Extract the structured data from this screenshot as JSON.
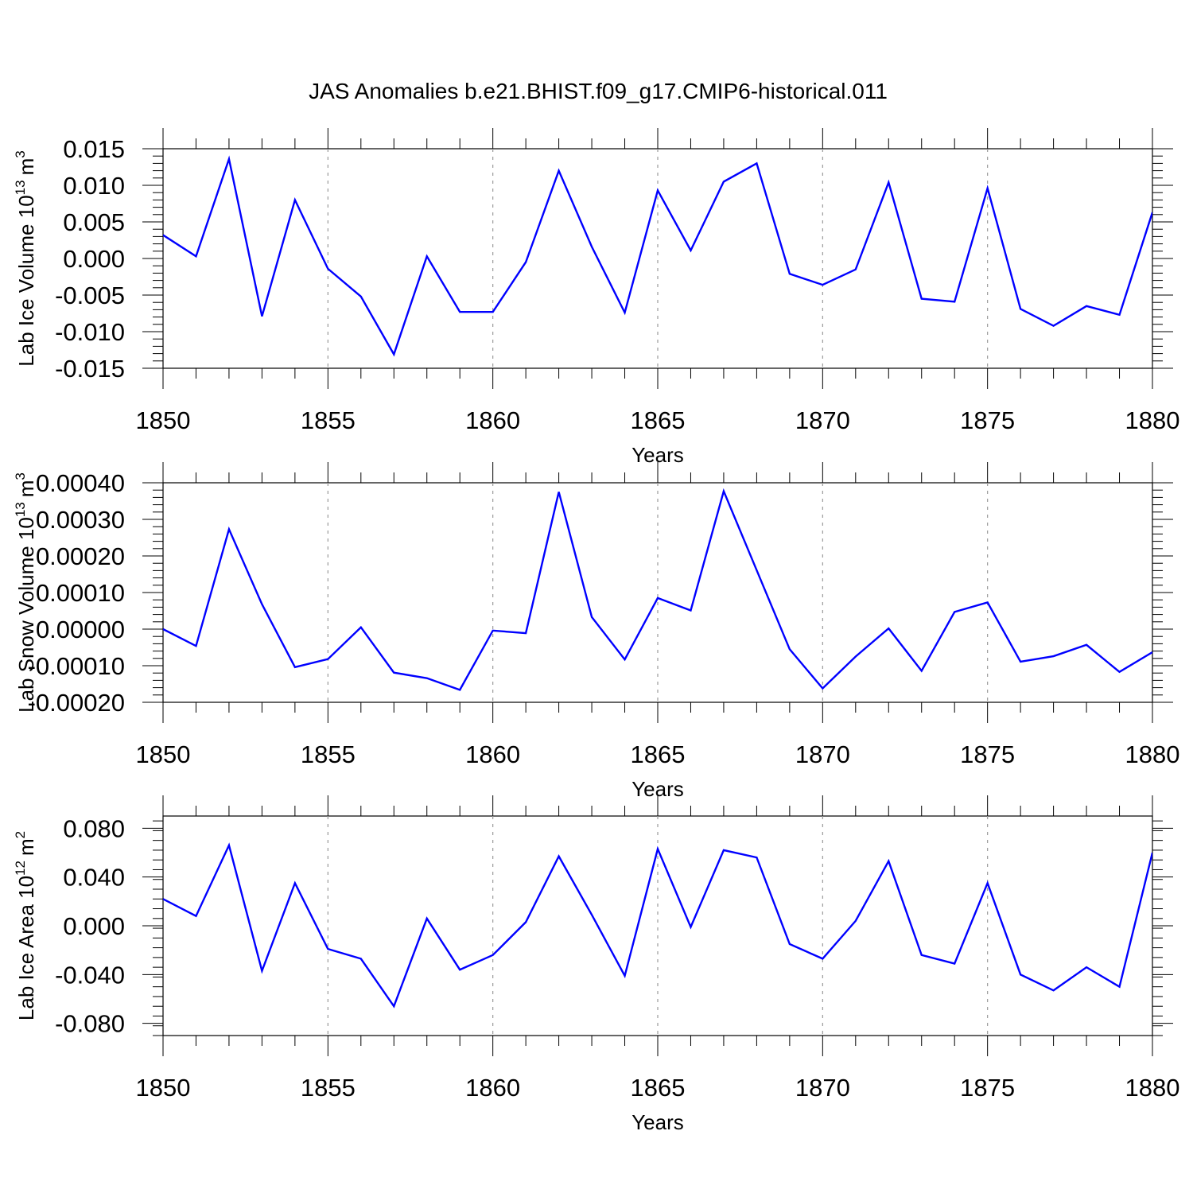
{
  "figure": {
    "title": "JAS Anomalies b.e21.BHIST.f09_g17.CMIP6-historical.011",
    "line_color": "#0000ff",
    "grid_color": "#999999"
  },
  "chart_data": [
    {
      "type": "line",
      "ylabel": "Lab Ice Volume 10",
      "ylabel_sup": "13",
      "ylabel_unit": "m",
      "ylabel_unit_sup": "3",
      "xlabel": "Years",
      "xlim": [
        1850,
        1880
      ],
      "ylim": [
        -0.015,
        0.015
      ],
      "x_ticks": [
        "1850",
        "1855",
        "1860",
        "1865",
        "1870",
        "1875",
        "1880"
      ],
      "y_ticks": [
        "0.015",
        "0.010",
        "0.005",
        "0.000",
        "-0.005",
        "-0.010",
        "-0.015"
      ],
      "x": [
        1850,
        1851,
        1852,
        1853,
        1854,
        1855,
        1856,
        1857,
        1858,
        1859,
        1860,
        1861,
        1862,
        1863,
        1864,
        1865,
        1866,
        1867,
        1868,
        1869,
        1870,
        1871,
        1872,
        1873,
        1874,
        1875,
        1876,
        1877,
        1878,
        1879,
        1880
      ],
      "series": [
        {
          "name": "ice_volume",
          "values": [
            0.0032,
            0.0003,
            0.0136,
            -0.0079,
            0.008,
            -0.0014,
            -0.0052,
            -0.0131,
            0.0003,
            -0.0073,
            -0.0073,
            -0.0005,
            0.012,
            0.0016,
            -0.0074,
            0.0093,
            0.0011,
            0.0105,
            0.013,
            -0.0021,
            -0.0036,
            -0.0015,
            0.0104,
            -0.0055,
            -0.0059,
            0.0096,
            -0.0069,
            -0.0092,
            -0.0065,
            -0.0077,
            0.0063
          ]
        }
      ]
    },
    {
      "type": "line",
      "ylabel": "Lab Snow Volume 10",
      "ylabel_sup": "13",
      "ylabel_unit": "m",
      "ylabel_unit_sup": "3",
      "xlabel": "Years",
      "xlim": [
        1850,
        1880
      ],
      "ylim": [
        -0.0002,
        0.0004
      ],
      "x_ticks": [
        "1850",
        "1855",
        "1860",
        "1865",
        "1870",
        "1875",
        "1880"
      ],
      "y_ticks": [
        "0.00040",
        "0.00030",
        "0.00020",
        "0.00010",
        "0.00000",
        "-0.00010",
        "-0.00020"
      ],
      "x": [
        1850,
        1851,
        1852,
        1853,
        1854,
        1855,
        1856,
        1857,
        1858,
        1859,
        1860,
        1861,
        1862,
        1863,
        1864,
        1865,
        1866,
        1867,
        1868,
        1869,
        1870,
        1871,
        1872,
        1873,
        1874,
        1875,
        1876,
        1877,
        1878,
        1879,
        1880
      ],
      "series": [
        {
          "name": "snow_volume",
          "values": [
            0.0,
            -4.6e-05,
            0.000273,
            6.8e-05,
            -0.000104,
            -8.2e-05,
            5e-06,
            -0.000119,
            -0.000134,
            -0.000166,
            -4e-06,
            -1.1e-05,
            0.000375,
            3.3e-05,
            -8.3e-05,
            8.5e-05,
            5.1e-05,
            0.000377,
            0.000161,
            -5.5e-05,
            -0.000162,
            -7.5e-05,
            2e-06,
            -0.000114,
            4.7e-05,
            7.3e-05,
            -8.9e-05,
            -7.4e-05,
            -4.3e-05,
            -0.000117,
            -6.3e-05
          ]
        }
      ]
    },
    {
      "type": "line",
      "ylabel": "Lab Ice Area 10",
      "ylabel_sup": "12",
      "ylabel_unit": "m",
      "ylabel_unit_sup": "2",
      "xlabel": "Years",
      "xlim": [
        1850,
        1880
      ],
      "ylim": [
        -0.09,
        0.09
      ],
      "x_ticks": [
        "1850",
        "1855",
        "1860",
        "1865",
        "1870",
        "1875",
        "1880"
      ],
      "y_ticks": [
        "0.080",
        "0.040",
        "0.000",
        "-0.040",
        "-0.080"
      ],
      "x": [
        1850,
        1851,
        1852,
        1853,
        1854,
        1855,
        1856,
        1857,
        1858,
        1859,
        1860,
        1861,
        1862,
        1863,
        1864,
        1865,
        1866,
        1867,
        1868,
        1869,
        1870,
        1871,
        1872,
        1873,
        1874,
        1875,
        1876,
        1877,
        1878,
        1879,
        1880
      ],
      "series": [
        {
          "name": "ice_area",
          "values": [
            0.022,
            0.008,
            0.066,
            -0.037,
            0.035,
            -0.019,
            -0.027,
            -0.066,
            0.006,
            -0.036,
            -0.024,
            0.003,
            0.057,
            0.009,
            -0.041,
            0.063,
            -0.001,
            0.062,
            0.056,
            -0.015,
            -0.027,
            0.004,
            0.053,
            -0.024,
            -0.031,
            0.035,
            -0.04,
            -0.053,
            -0.034,
            -0.05,
            0.06
          ]
        }
      ]
    }
  ]
}
